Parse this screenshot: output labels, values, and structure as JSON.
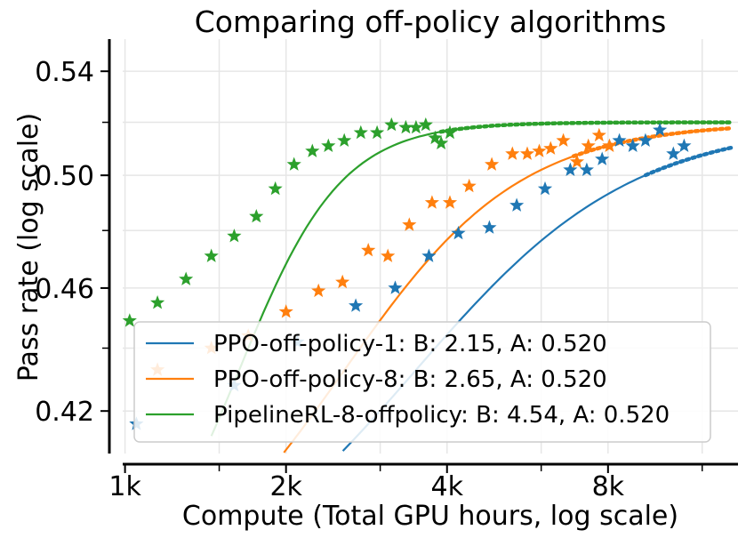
{
  "chart_data": {
    "type": "scatter",
    "title": "Comparing off-policy algorithms",
    "xlabel": "Compute (Total GPU hours, log scale)",
    "ylabel": "Pass rate (log scale)",
    "x_scale": "log",
    "y_scale": "log",
    "xlim": [
      990,
      14000
    ],
    "ylim": [
      0.407,
      0.553
    ],
    "x_ticks": [
      {
        "value": 1000,
        "label": "1k"
      },
      {
        "value": 2000,
        "label": "2k"
      },
      {
        "value": 4000,
        "label": "4k"
      },
      {
        "value": 8000,
        "label": "8k"
      }
    ],
    "y_ticks": [
      {
        "value": 0.42,
        "label": "0.42"
      },
      {
        "value": 0.46,
        "label": "0.46"
      },
      {
        "value": 0.5,
        "label": "0.50"
      },
      {
        "value": 0.54,
        "label": "0.54"
      }
    ],
    "grid": true,
    "legend_position": "lower-left",
    "series": [
      {
        "name": "PPO-off-policy-1: B: 2.15, A: 0.520",
        "color": "#1f77b4",
        "fit_start": 1500,
        "fit_end": 9500,
        "B": 2.15,
        "A": 0.52,
        "C_mid": 3800,
        "points": [
          [
            1050,
            0.416
          ],
          [
            1600,
            0.428
          ],
          [
            2100,
            0.442
          ],
          [
            2700,
            0.454
          ],
          [
            3200,
            0.46
          ],
          [
            3700,
            0.471
          ],
          [
            4200,
            0.479
          ],
          [
            4800,
            0.481
          ],
          [
            5400,
            0.489
          ],
          [
            6100,
            0.495
          ],
          [
            6800,
            0.502
          ],
          [
            7300,
            0.502
          ],
          [
            7800,
            0.506
          ],
          [
            8400,
            0.513
          ],
          [
            8900,
            0.511
          ],
          [
            9400,
            0.513
          ],
          [
            10000,
            0.517
          ],
          [
            10600,
            0.508
          ],
          [
            11100,
            0.511
          ]
        ]
      },
      {
        "name": "PPO-off-policy-8: B: 2.65, A: 0.520",
        "color": "#ff7f0e",
        "fit_start": 1600,
        "fit_end": 7000,
        "B": 2.65,
        "A": 0.52,
        "C_mid": 2750,
        "points": [
          [
            1150,
            0.433
          ],
          [
            1450,
            0.44
          ],
          [
            1700,
            0.444
          ],
          [
            2000,
            0.452
          ],
          [
            2300,
            0.459
          ],
          [
            2550,
            0.462
          ],
          [
            2850,
            0.473
          ],
          [
            3100,
            0.471
          ],
          [
            3400,
            0.482
          ],
          [
            3750,
            0.49
          ],
          [
            4050,
            0.49
          ],
          [
            4400,
            0.496
          ],
          [
            4850,
            0.504
          ],
          [
            5300,
            0.508
          ],
          [
            5650,
            0.508
          ],
          [
            5950,
            0.509
          ],
          [
            6250,
            0.51
          ],
          [
            6600,
            0.513
          ],
          [
            7000,
            0.505
          ],
          [
            7350,
            0.511
          ],
          [
            7700,
            0.515
          ],
          [
            8050,
            0.511
          ]
        ]
      },
      {
        "name": "PipelineRL-8-offpolicy: B: 4.54, A: 0.520",
        "color": "#2ca02c",
        "fit_start": 1450,
        "fit_end": 3900,
        "B": 4.54,
        "A": 0.52,
        "C_mid": 1700,
        "points": [
          [
            1020,
            0.449
          ],
          [
            1150,
            0.455
          ],
          [
            1300,
            0.463
          ],
          [
            1450,
            0.471
          ],
          [
            1600,
            0.478
          ],
          [
            1760,
            0.485
          ],
          [
            1910,
            0.495
          ],
          [
            2070,
            0.504
          ],
          [
            2240,
            0.509
          ],
          [
            2400,
            0.511
          ],
          [
            2570,
            0.513
          ],
          [
            2760,
            0.516
          ],
          [
            2960,
            0.516
          ],
          [
            3150,
            0.519
          ],
          [
            3350,
            0.518
          ],
          [
            3500,
            0.518
          ],
          [
            3650,
            0.519
          ],
          [
            3800,
            0.514
          ],
          [
            3900,
            0.512
          ],
          [
            4050,
            0.516
          ]
        ]
      }
    ]
  }
}
